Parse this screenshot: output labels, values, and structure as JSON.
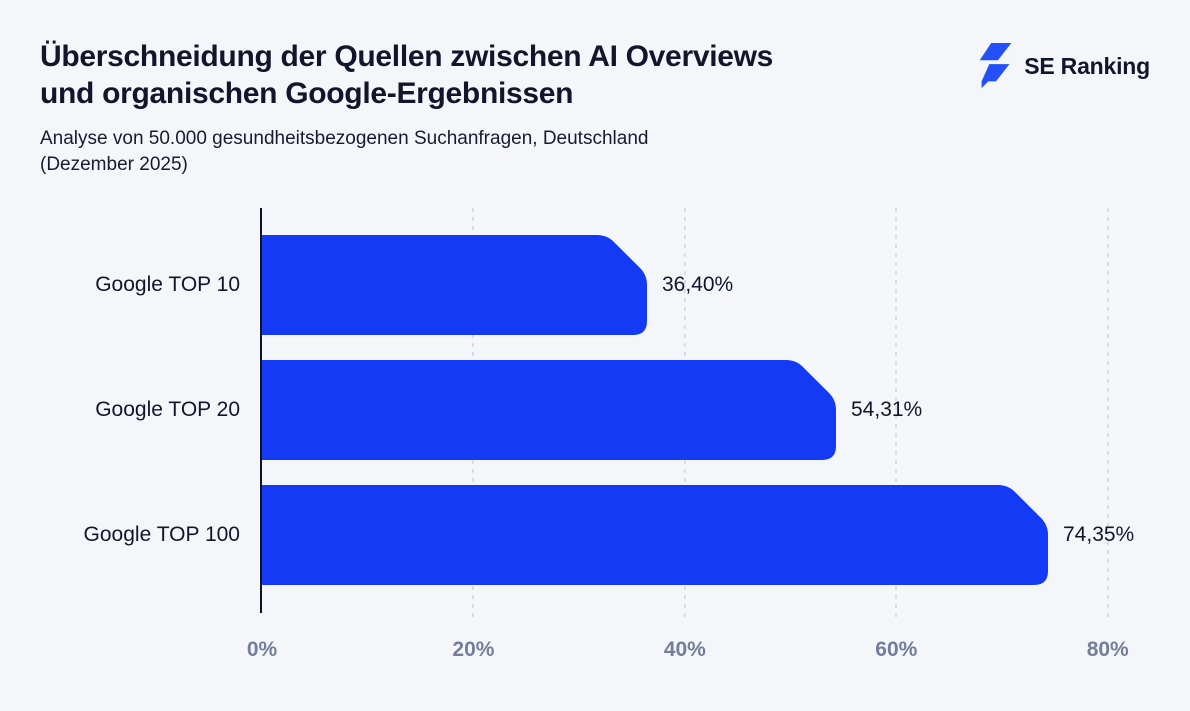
{
  "header": {
    "title_lines": [
      "Überschneidung der Quellen zwischen AI Overviews",
      "und organischen Google-Ergebnissen"
    ],
    "subtitle_lines": [
      "Analyse von 50.000 gesundheitsbezogenen Suchanfragen, Deutschland",
      "(Dezember 2025)"
    ],
    "brand_name": "SE Ranking"
  },
  "colors": {
    "background": "#f5f6fa",
    "bar": "#143af5",
    "logo_bolt": "#2450f8",
    "text_dark": "#12162b",
    "axis_line": "#0e1226",
    "gridline": "#d9dde8",
    "tick_text": "#747e99"
  },
  "chart_data": {
    "type": "bar",
    "orientation": "horizontal",
    "title": "Überschneidung der Quellen zwischen AI Overviews und organischen Google-Ergebnissen",
    "subtitle": "Analyse von 50.000 gesundheitsbezogenen Suchanfragen, Deutschland (Dezember 2025)",
    "categories": [
      "Google TOP 10",
      "Google TOP 20",
      "Google TOP 100"
    ],
    "values": [
      36.4,
      54.31,
      74.35
    ],
    "value_labels": [
      "36,40%",
      "54,31%",
      "74,35%"
    ],
    "x_ticks": [
      {
        "value": 0,
        "label": "0%"
      },
      {
        "value": 20,
        "label": "20%"
      },
      {
        "value": 40,
        "label": "40%"
      },
      {
        "value": 60,
        "label": "60%"
      },
      {
        "value": 80,
        "label": "80%"
      }
    ],
    "xlim": [
      0,
      84
    ],
    "grid": "vertical-dashed",
    "legend": "none",
    "bar_color": "#143af5"
  }
}
